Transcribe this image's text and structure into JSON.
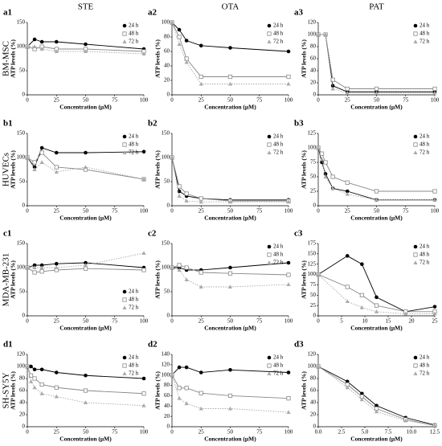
{
  "column_titles": [
    "STE",
    "OTA",
    "PAT"
  ],
  "row_titles": [
    "BM-MSC",
    "HUVECs",
    "MDA-MB-231",
    "SH-SY5Y"
  ],
  "chart_data": [
    {
      "type": "line",
      "title": "a1",
      "xlabel": "Concentration (μM)",
      "ylabel": "ATP levels (%)",
      "legend": "upper right",
      "x": [
        0,
        6.25,
        12.5,
        25,
        50,
        100
      ],
      "xlim": [
        0,
        100
      ],
      "xticks": [
        0,
        25,
        50,
        75,
        100
      ],
      "ylim": [
        0,
        150
      ],
      "yticks": [
        0,
        50,
        100,
        150
      ],
      "series": [
        {
          "name": "24 h",
          "color": "#000000",
          "marker": "circle",
          "linestyle": "solid",
          "values": [
            100,
            115,
            110,
            110,
            105,
            95
          ]
        },
        {
          "name": "48 h",
          "color": "#888888",
          "marker": "open-square",
          "linestyle": "solid",
          "values": [
            100,
            95,
            100,
            95,
            95,
            90
          ]
        },
        {
          "name": "72 h",
          "color": "#aaaaaa",
          "marker": "triangle",
          "linestyle": "dotted",
          "values": [
            100,
            100,
            95,
            90,
            90,
            85
          ]
        }
      ]
    },
    {
      "type": "line",
      "title": "a2",
      "xlabel": "Concentration (μM)",
      "ylabel": "ATP levels (%)",
      "legend": "upper right",
      "x": [
        0,
        6.25,
        12.5,
        25,
        50,
        100
      ],
      "xlim": [
        0,
        100
      ],
      "xticks": [
        0,
        25,
        50,
        75,
        100
      ],
      "ylim": [
        0,
        100
      ],
      "yticks": [
        0,
        20,
        40,
        60,
        80,
        100
      ],
      "series": [
        {
          "name": "24 h",
          "color": "#000000",
          "marker": "circle",
          "linestyle": "solid",
          "values": [
            100,
            90,
            75,
            68,
            65,
            60
          ]
        },
        {
          "name": "48 h",
          "color": "#888888",
          "marker": "open-square",
          "linestyle": "solid",
          "values": [
            100,
            80,
            50,
            25,
            25,
            25
          ]
        },
        {
          "name": "72 h",
          "color": "#aaaaaa",
          "marker": "triangle",
          "linestyle": "dotted",
          "values": [
            100,
            70,
            45,
            15,
            15,
            15
          ]
        }
      ]
    },
    {
      "type": "line",
      "title": "a3",
      "xlabel": "Concentration (μM)",
      "ylabel": "ATP levels (%)",
      "legend": "upper right",
      "x": [
        0,
        6.25,
        12.5,
        25,
        50,
        100
      ],
      "xlim": [
        0,
        100
      ],
      "xticks": [
        0,
        25,
        50,
        75,
        100
      ],
      "ylim": [
        0,
        120
      ],
      "yticks": [
        0,
        20,
        40,
        60,
        80,
        100,
        120
      ],
      "series": [
        {
          "name": "24 h",
          "color": "#000000",
          "marker": "circle",
          "linestyle": "solid",
          "values": [
            100,
            100,
            15,
            5,
            5,
            5
          ]
        },
        {
          "name": "48 h",
          "color": "#888888",
          "marker": "open-square",
          "linestyle": "solid",
          "values": [
            100,
            100,
            25,
            10,
            10,
            10
          ]
        },
        {
          "name": "72 h",
          "color": "#aaaaaa",
          "marker": "triangle",
          "linestyle": "dotted",
          "values": [
            100,
            100,
            10,
            3,
            3,
            3
          ]
        }
      ]
    },
    {
      "type": "line",
      "title": "b1",
      "xlabel": "Concentration (μM)",
      "ylabel": "ATP levels (%)",
      "legend": "upper right",
      "x": [
        0,
        6.25,
        12.5,
        25,
        50,
        100
      ],
      "xlim": [
        0,
        100
      ],
      "xticks": [
        0,
        25,
        50,
        75,
        100
      ],
      "ylim": [
        0,
        150
      ],
      "yticks": [
        0,
        50,
        100,
        150
      ],
      "series": [
        {
          "name": "24 h",
          "color": "#000000",
          "marker": "circle",
          "linestyle": "solid",
          "values": [
            100,
            80,
            120,
            110,
            110,
            112
          ]
        },
        {
          "name": "48 h",
          "color": "#888888",
          "marker": "open-square",
          "linestyle": "solid",
          "values": [
            100,
            90,
            110,
            80,
            75,
            55
          ]
        },
        {
          "name": "72 h",
          "color": "#aaaaaa",
          "marker": "triangle",
          "linestyle": "dotted",
          "values": [
            100,
            75,
            90,
            70,
            80,
            55
          ]
        }
      ]
    },
    {
      "type": "line",
      "title": "b2",
      "xlabel": "Concentration (μM)",
      "ylabel": "ATP levels (%)",
      "legend": "upper right",
      "x": [
        0,
        6.25,
        12.5,
        25,
        50,
        100
      ],
      "xlim": [
        0,
        100
      ],
      "xticks": [
        0,
        25,
        50,
        75,
        100
      ],
      "ylim": [
        0,
        150
      ],
      "yticks": [
        0,
        50,
        100,
        150
      ],
      "series": [
        {
          "name": "24 h",
          "color": "#000000",
          "marker": "circle",
          "linestyle": "solid",
          "values": [
            100,
            30,
            20,
            15,
            12,
            12
          ]
        },
        {
          "name": "48 h",
          "color": "#888888",
          "marker": "open-square",
          "linestyle": "solid",
          "values": [
            100,
            40,
            25,
            15,
            10,
            10
          ]
        },
        {
          "name": "72 h",
          "color": "#aaaaaa",
          "marker": "triangle",
          "linestyle": "dotted",
          "values": [
            100,
            20,
            10,
            8,
            8,
            8
          ]
        }
      ]
    },
    {
      "type": "line",
      "title": "b3",
      "xlabel": "Concentration (μM)",
      "ylabel": "ATP levels (%)",
      "legend": "upper right",
      "x": [
        0,
        3.125,
        6.25,
        12.5,
        25,
        50,
        100
      ],
      "xlim": [
        0,
        100
      ],
      "xticks": [
        0,
        25,
        50,
        75,
        100
      ],
      "ylim": [
        0,
        125
      ],
      "yticks": [
        0,
        25,
        50,
        75,
        100,
        125
      ],
      "series": [
        {
          "name": "24 h",
          "color": "#000000",
          "marker": "circle",
          "linestyle": "solid",
          "values": [
            100,
            75,
            55,
            30,
            25,
            10,
            10
          ]
        },
        {
          "name": "48 h",
          "color": "#888888",
          "marker": "open-square",
          "linestyle": "solid",
          "values": [
            100,
            90,
            75,
            50,
            40,
            25,
            25
          ]
        },
        {
          "name": "72 h",
          "color": "#aaaaaa",
          "marker": "triangle",
          "linestyle": "dotted",
          "values": [
            100,
            80,
            50,
            30,
            20,
            10,
            10
          ]
        }
      ]
    },
    {
      "type": "line",
      "title": "c1",
      "xlabel": "Concentration (μM)",
      "ylabel": "ATP levels (%)",
      "legend": "lower right",
      "x": [
        0,
        6.25,
        12.5,
        25,
        50,
        100
      ],
      "xlim": [
        0,
        100
      ],
      "xticks": [
        0,
        25,
        50,
        75,
        100
      ],
      "ylim": [
        0,
        150
      ],
      "yticks": [
        0,
        50,
        100,
        150
      ],
      "series": [
        {
          "name": "24 h",
          "color": "#000000",
          "marker": "circle",
          "linestyle": "solid",
          "values": [
            100,
            105,
            105,
            108,
            110,
            100
          ]
        },
        {
          "name": "48 h",
          "color": "#888888",
          "marker": "open-square",
          "linestyle": "solid",
          "values": [
            100,
            90,
            92,
            95,
            98,
            95
          ]
        },
        {
          "name": "72 h",
          "color": "#aaaaaa",
          "marker": "triangle",
          "linestyle": "dotted",
          "values": [
            100,
            100,
            100,
            100,
            105,
            130
          ]
        }
      ]
    },
    {
      "type": "line",
      "title": "c2",
      "xlabel": "Concentration (μM)",
      "ylabel": "ATP levels (%)",
      "legend": "upper right",
      "x": [
        0,
        6.25,
        12.5,
        25,
        50,
        100
      ],
      "xlim": [
        0,
        100
      ],
      "xticks": [
        0,
        25,
        50,
        75,
        100
      ],
      "ylim": [
        0,
        150
      ],
      "yticks": [
        0,
        50,
        100,
        150
      ],
      "series": [
        {
          "name": "24 h",
          "color": "#000000",
          "marker": "circle",
          "linestyle": "solid",
          "values": [
            100,
            100,
            95,
            95,
            100,
            110
          ]
        },
        {
          "name": "48 h",
          "color": "#888888",
          "marker": "open-square",
          "linestyle": "solid",
          "values": [
            100,
            105,
            100,
            90,
            88,
            85
          ]
        },
        {
          "name": "72 h",
          "color": "#aaaaaa",
          "marker": "triangle",
          "linestyle": "dotted",
          "values": [
            100,
            95,
            75,
            60,
            60,
            65
          ]
        }
      ]
    },
    {
      "type": "line",
      "title": "c3",
      "xlabel": "Concentration (μM)",
      "ylabel": "ATP levels (%)",
      "legend": "upper right",
      "x": [
        0,
        6.25,
        9.375,
        12.5,
        18.75,
        25
      ],
      "xlim": [
        0,
        25
      ],
      "xticks": [
        0,
        5,
        10,
        15,
        20,
        25
      ],
      "ylim": [
        0,
        175
      ],
      "yticks": [
        0,
        25,
        50,
        75,
        100,
        125,
        150,
        175
      ],
      "series": [
        {
          "name": "24 h",
          "color": "#000000",
          "marker": "circle",
          "linestyle": "solid",
          "values": [
            100,
            145,
            125,
            45,
            10,
            22
          ]
        },
        {
          "name": "48 h",
          "color": "#888888",
          "marker": "open-square",
          "linestyle": "solid",
          "values": [
            100,
            70,
            50,
            25,
            10,
            10
          ]
        },
        {
          "name": "72 h",
          "color": "#aaaaaa",
          "marker": "triangle",
          "linestyle": "dotted",
          "values": [
            100,
            35,
            20,
            10,
            5,
            5
          ]
        }
      ]
    },
    {
      "type": "line",
      "title": "d1",
      "xlabel": "Concentration (μM)",
      "ylabel": "ATP levels (%)",
      "legend": "upper right",
      "x": [
        0,
        3.125,
        6.25,
        12.5,
        25,
        50,
        100
      ],
      "xlim": [
        0,
        100
      ],
      "xticks": [
        0,
        25,
        50,
        75,
        100
      ],
      "ylim": [
        0,
        120
      ],
      "yticks": [
        0,
        20,
        40,
        60,
        80,
        100,
        120
      ],
      "series": [
        {
          "name": "24 h",
          "color": "#000000",
          "marker": "circle",
          "linestyle": "solid",
          "values": [
            100,
            100,
            95,
            95,
            90,
            85,
            80
          ]
        },
        {
          "name": "48 h",
          "color": "#888888",
          "marker": "open-square",
          "linestyle": "solid",
          "values": [
            100,
            85,
            80,
            70,
            65,
            60,
            55
          ]
        },
        {
          "name": "72 h",
          "color": "#aaaaaa",
          "marker": "triangle",
          "linestyle": "dotted",
          "values": [
            100,
            75,
            65,
            55,
            50,
            40,
            35
          ]
        }
      ]
    },
    {
      "type": "line",
      "title": "d2",
      "xlabel": "Concentration (μM)",
      "ylabel": "ATP levels (%)",
      "legend": "upper right",
      "x": [
        0,
        6.25,
        12.5,
        25,
        50,
        100
      ],
      "xlim": [
        0,
        100
      ],
      "xticks": [
        0,
        25,
        50,
        75,
        100
      ],
      "ylim": [
        0,
        140
      ],
      "yticks": [
        0,
        20,
        40,
        60,
        80,
        100,
        120,
        140
      ],
      "series": [
        {
          "name": "24 h",
          "color": "#000000",
          "marker": "circle",
          "linestyle": "solid",
          "values": [
            100,
            115,
            115,
            105,
            110,
            105
          ]
        },
        {
          "name": "48 h",
          "color": "#888888",
          "marker": "open-square",
          "linestyle": "solid",
          "values": [
            100,
            75,
            75,
            65,
            60,
            55
          ]
        },
        {
          "name": "72 h",
          "color": "#aaaaaa",
          "marker": "triangle",
          "linestyle": "dotted",
          "values": [
            100,
            55,
            45,
            35,
            35,
            28
          ]
        }
      ]
    },
    {
      "type": "line",
      "title": "d3",
      "xlabel": "Concentration (μM)",
      "ylabel": "ATP levels (%)",
      "legend": "upper right",
      "x": [
        0,
        3.125,
        4.6875,
        6.25,
        9.375,
        12.5
      ],
      "xlim": [
        0,
        12.5
      ],
      "xticks": [
        {
          "value": 0,
          "label": "0.0"
        },
        2.5,
        {
          "value": 5,
          "label": "5.0"
        },
        7.5,
        {
          "value": 10,
          "label": "10.0"
        },
        12.5
      ],
      "ylim": [
        0,
        120
      ],
      "yticks": [
        0,
        20,
        40,
        60,
        80,
        100,
        120
      ],
      "series": [
        {
          "name": "24 h",
          "color": "#000000",
          "marker": "circle",
          "linestyle": "solid",
          "values": [
            100,
            75,
            55,
            35,
            15,
            3
          ]
        },
        {
          "name": "48 h",
          "color": "#888888",
          "marker": "open-square",
          "linestyle": "solid",
          "values": [
            100,
            70,
            50,
            30,
            12,
            2
          ]
        },
        {
          "name": "72 h",
          "color": "#aaaaaa",
          "marker": "triangle",
          "linestyle": "dotted",
          "values": [
            100,
            65,
            45,
            25,
            10,
            2
          ]
        }
      ]
    }
  ]
}
